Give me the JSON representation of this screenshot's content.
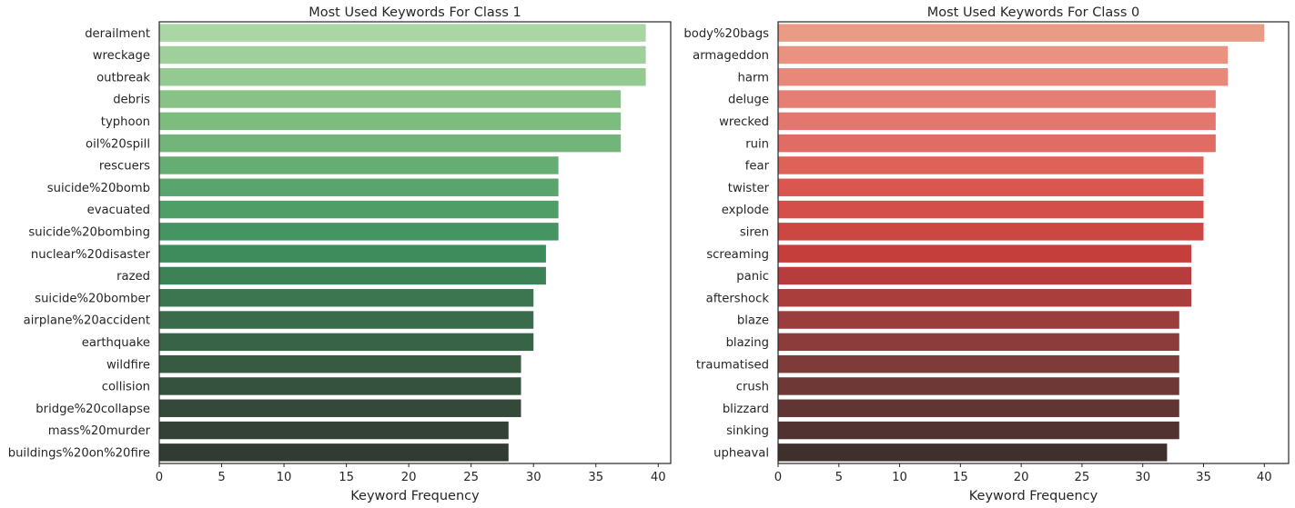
{
  "chart_data": [
    {
      "type": "bar",
      "orientation": "horizontal",
      "title": "Most Used Keywords For Class 1",
      "xlabel": "Keyword Frequency",
      "ylabel": "",
      "xlim": [
        0,
        41
      ],
      "xticks": [
        0,
        5,
        10,
        15,
        20,
        25,
        30,
        35,
        40
      ],
      "grid": false,
      "palette": "greens_d",
      "bar_colors": [
        "#aad5a5",
        "#9fcf9b",
        "#94c991",
        "#88c287",
        "#7dbc7f",
        "#72b47a",
        "#66ad73",
        "#5aa56e",
        "#4f9d67",
        "#449562",
        "#3e8c5c",
        "#3d8156",
        "#3b7651",
        "#3a6c4c",
        "#386347",
        "#365a42",
        "#35523e",
        "#34493a",
        "#334136",
        "#323a34"
      ],
      "categories": [
        "derailment",
        "wreckage",
        "outbreak",
        "debris",
        "typhoon",
        "oil%20spill",
        "rescuers",
        "suicide%20bomb",
        "evacuated",
        "suicide%20bombing",
        "nuclear%20disaster",
        "razed",
        "suicide%20bomber",
        "airplane%20accident",
        "earthquake",
        "wildfire",
        "collision",
        "bridge%20collapse",
        "mass%20murder",
        "buildings%20on%20fire"
      ],
      "values": [
        39,
        39,
        39,
        37,
        37,
        37,
        32,
        32,
        32,
        32,
        31,
        31,
        30,
        30,
        30,
        29,
        29,
        29,
        28,
        28
      ]
    },
    {
      "type": "bar",
      "orientation": "horizontal",
      "title": "Most Used Keywords For Class 0",
      "xlabel": "Keyword Frequency",
      "ylabel": "",
      "xlim": [
        0,
        42
      ],
      "xticks": [
        0,
        5,
        10,
        15,
        20,
        25,
        30,
        35,
        40
      ],
      "grid": false,
      "palette": "reds_d",
      "bar_colors": [
        "#ea9b86",
        "#e99280",
        "#e8887b",
        "#e57f75",
        "#e3766f",
        "#e06c66",
        "#dd6258",
        "#da5750",
        "#d44f49",
        "#cc4742",
        "#c53e3c",
        "#b63d3c",
        "#a93e3d",
        "#9b3d3d",
        "#8d3c3c",
        "#7f3b3a",
        "#6e3837",
        "#603534",
        "#523230",
        "#3f302e"
      ],
      "categories": [
        "body%20bags",
        "armageddon",
        "harm",
        "deluge",
        "wrecked",
        "ruin",
        "fear",
        "twister",
        "explode",
        "siren",
        "screaming",
        "panic",
        "aftershock",
        "blaze",
        "blazing",
        "traumatised",
        "crush",
        "blizzard",
        "sinking",
        "upheaval"
      ],
      "values": [
        40,
        37,
        37,
        36,
        36,
        36,
        35,
        35,
        35,
        35,
        34,
        34,
        34,
        33,
        33,
        33,
        33,
        33,
        33,
        32
      ]
    }
  ]
}
